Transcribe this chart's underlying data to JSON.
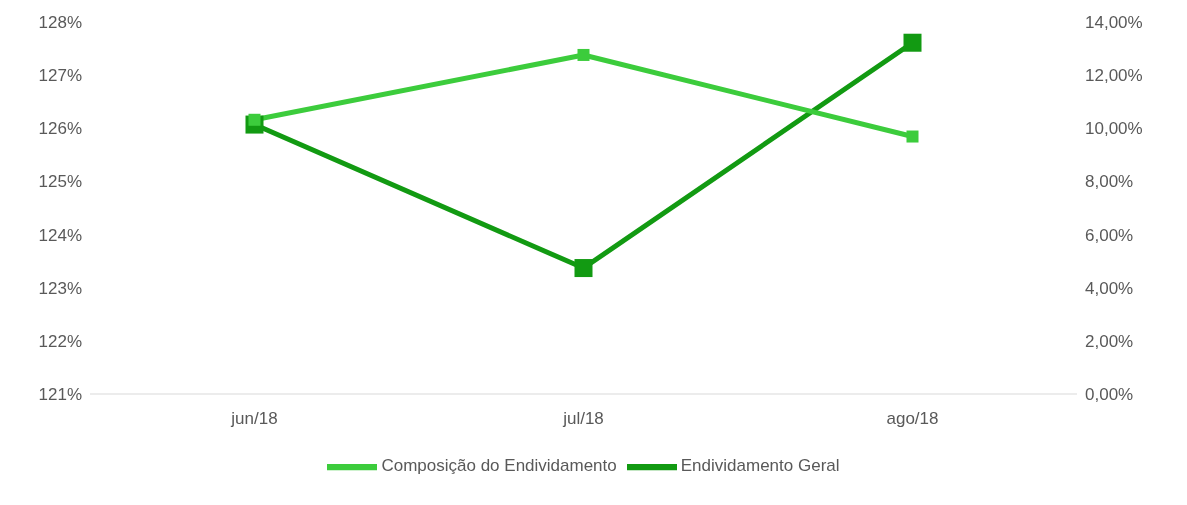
{
  "chart_data": {
    "type": "line",
    "categories": [
      "jun/18",
      "jul/18",
      "ago/18"
    ],
    "series": [
      {
        "name": "Endividamento Geral",
        "color": "#129a12",
        "values": [
          126.07,
          123.37,
          127.61
        ]
      },
      {
        "name": "Composição do Endividamento",
        "color": "#3ccc3c",
        "axis": "y2",
        "values": [
          10.32,
          12.76,
          9.69
        ]
      }
    ],
    "ylim": [
      121,
      128
    ],
    "yticks": [
      {
        "value": 121,
        "label": "121%"
      },
      {
        "value": 122,
        "label": "122%"
      },
      {
        "value": 123,
        "label": "123%"
      },
      {
        "value": 124,
        "label": "124%"
      },
      {
        "value": 125,
        "label": "125%"
      },
      {
        "value": 126,
        "label": "126%"
      },
      {
        "value": 127,
        "label": "127%"
      },
      {
        "value": 128,
        "label": "128%"
      }
    ],
    "y2lim": [
      0,
      14
    ],
    "y2ticks": [
      {
        "value": 0,
        "label": "0,00%"
      },
      {
        "value": 2,
        "label": "2,00%"
      },
      {
        "value": 4,
        "label": "4,00%"
      },
      {
        "value": 6,
        "label": "6,00%"
      },
      {
        "value": 8,
        "label": "8,00%"
      },
      {
        "value": 10,
        "label": "10,00%"
      },
      {
        "value": 12,
        "label": "12,00%"
      },
      {
        "value": 14,
        "label": "14,00%"
      }
    ],
    "grid": false,
    "legend": "bottom",
    "marker": "square",
    "line_style": "solid"
  }
}
